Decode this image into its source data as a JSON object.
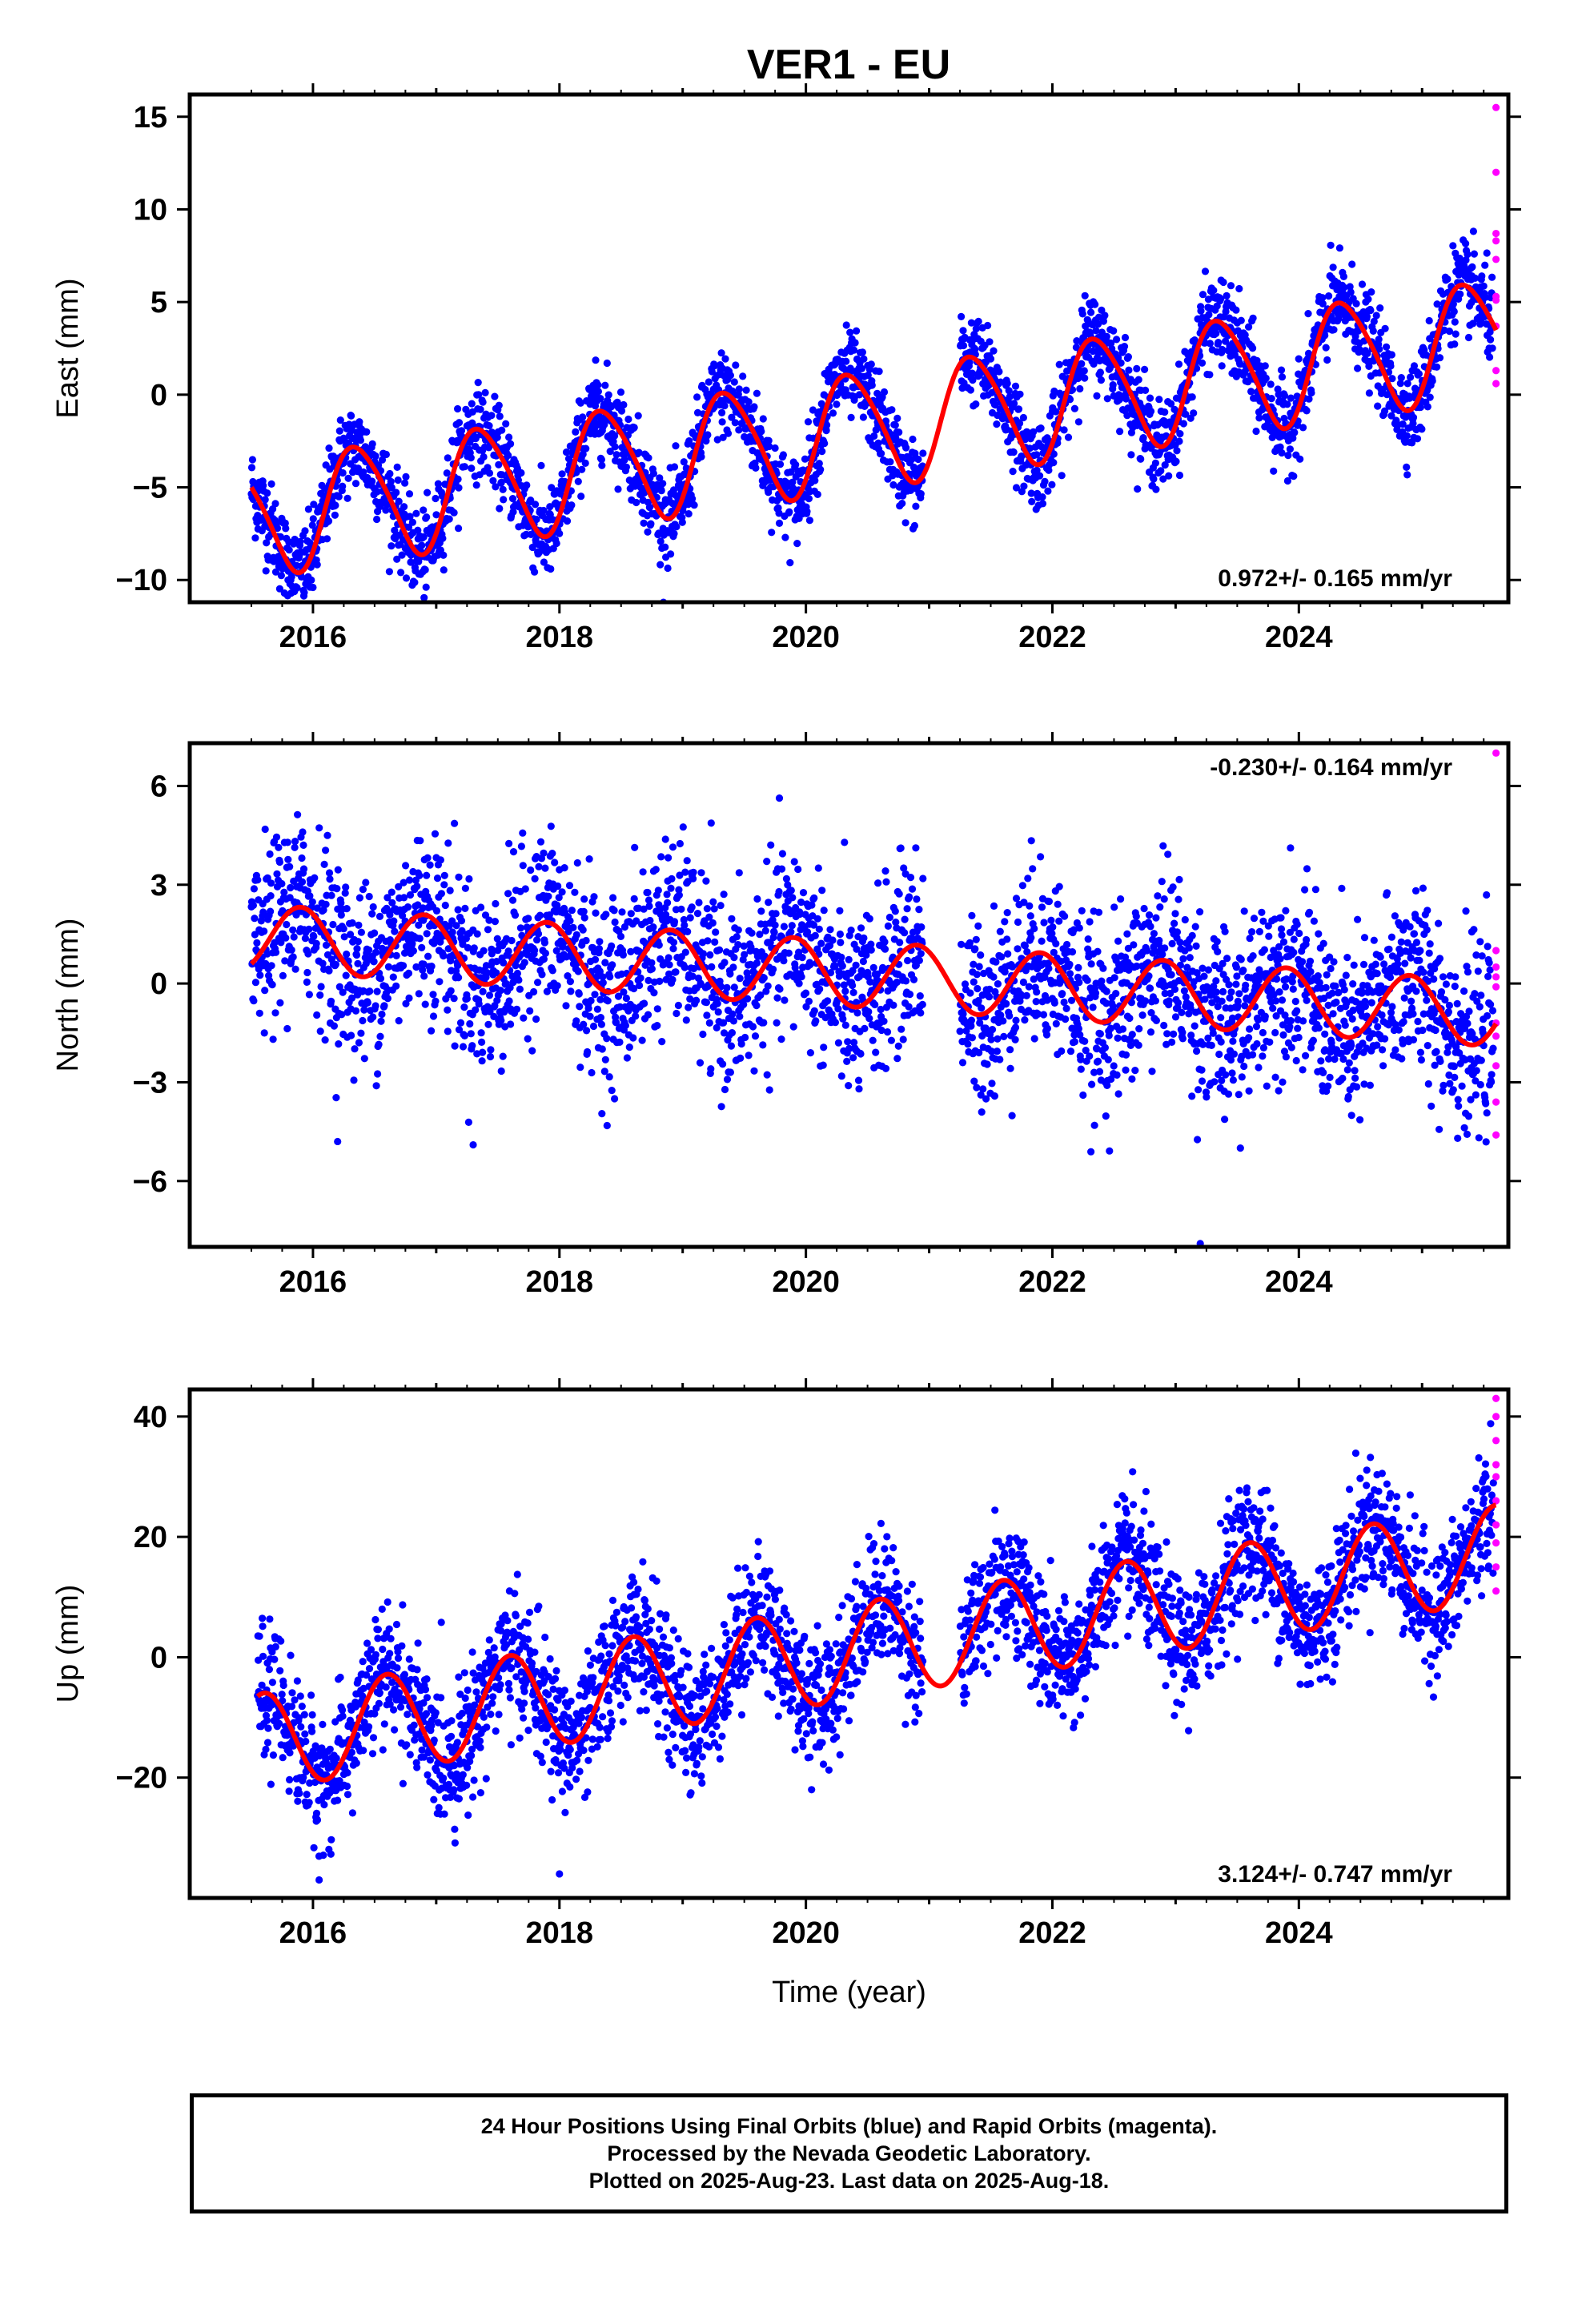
{
  "title": "VER1 - EU",
  "colors": {
    "final": "#0000ff",
    "rapid": "#ff00ff",
    "model": "#ff0000",
    "axes": "#000000"
  },
  "footer": {
    "line1": "24 Hour Positions Using Final Orbits (blue) and Rapid Orbits (magenta).",
    "line2": "Processed by the Nevada Geodetic Laboratory.",
    "line3": "Plotted on 2025-Aug-23. Last data on 2025-Aug-18."
  },
  "chart_data": [
    {
      "type": "scatter",
      "component": "east",
      "ylabel": "East (mm)",
      "xlabel": "",
      "xlim": [
        2015.0,
        2025.7
      ],
      "ylim": [
        -11.2,
        16.2
      ],
      "xticks": [
        2016,
        2018,
        2020,
        2022,
        2024
      ],
      "xtick_labels": [
        "2016",
        "2018",
        "2020",
        "2022",
        "2024"
      ],
      "yticks": [
        -10,
        -5,
        0,
        5,
        10,
        15
      ],
      "ytick_labels": [
        "−10",
        "−5",
        "0",
        "5",
        "10",
        "15"
      ],
      "rate_label": "0.972+/- 0.165 mm/yr",
      "rate_position": "bottom-right",
      "model": {
        "name": "model",
        "rate": 0.972,
        "annual_amp": 3.1,
        "annual_peak": 0.36,
        "semiannual_amp": 0.4,
        "semiannual_peak": 0.2,
        "value_at_start": -5.0
      },
      "x": [
        2015.5,
        2015.6,
        2015.75,
        2016.0,
        2016.36,
        2016.75,
        2017.36,
        2017.75,
        2018.36,
        2018.75,
        2019.36,
        2019.75,
        2020.36,
        2020.75,
        2021.36,
        2021.75,
        2022.36,
        2022.75,
        2023.36,
        2023.75,
        2024.36,
        2024.75,
        2025.36,
        2025.6
      ],
      "y": [
        -4.0,
        -6.0,
        -6.8,
        -5.5,
        -0.8,
        -5.9,
        0.1,
        -4.9,
        1.1,
        -3.9,
        2.0,
        -2.9,
        3.0,
        -1.9,
        4.0,
        -0.9,
        5.0,
        0.1,
        6.0,
        1.0,
        7.0,
        2.0,
        7.9,
        4.0
      ],
      "rapid_x": [
        2025.6,
        2025.6,
        2025.6,
        2025.6,
        2025.6,
        2025.6,
        2025.6,
        2025.6,
        2025.6,
        2025.6
      ],
      "rapid_y": [
        15.5,
        12.0,
        8.7,
        8.3,
        7.3,
        5.3,
        5.1,
        3.7,
        1.3,
        0.6
      ]
    },
    {
      "type": "scatter",
      "component": "north",
      "ylabel": "North (mm)",
      "xlabel": "",
      "xlim": [
        2015.0,
        2025.7
      ],
      "ylim": [
        -8.0,
        7.3
      ],
      "xticks": [
        2016,
        2018,
        2020,
        2022,
        2024
      ],
      "xtick_labels": [
        "2016",
        "2018",
        "2020",
        "2022",
        "2024"
      ],
      "yticks": [
        -6,
        -3,
        0,
        3,
        6
      ],
      "ytick_labels": [
        "−6",
        "−3",
        "0",
        "3",
        "6"
      ],
      "rate_label": "-0.230+/- 0.164 mm/yr",
      "rate_position": "top-right",
      "model": {
        "name": "model",
        "rate": -0.23,
        "annual_amp": 1.0,
        "annual_peak": 0.9,
        "semiannual_amp": 0.0,
        "semiannual_peak": 0.0,
        "value_at_start": 0.6
      },
      "x": [
        2015.5,
        2015.9,
        2016.4,
        2016.9,
        2017.4,
        2017.9,
        2018.4,
        2018.9,
        2019.4,
        2019.9,
        2020.4,
        2020.9,
        2021.4,
        2021.9,
        2022.4,
        2022.9,
        2023.4,
        2023.9,
        2024.4,
        2024.9,
        2025.4,
        2025.6
      ],
      "y": [
        0.7,
        2.0,
        0.1,
        1.7,
        -0.2,
        1.5,
        -0.4,
        1.3,
        -0.6,
        1.1,
        -0.8,
        0.9,
        -1.0,
        0.7,
        -1.2,
        0.4,
        -1.5,
        0.2,
        -1.7,
        -0.1,
        -1.8,
        -1.6
      ],
      "rapid_x": [
        2025.6,
        2025.6,
        2025.6,
        2025.6,
        2025.6,
        2025.6,
        2025.6,
        2025.6,
        2025.6,
        2025.6
      ],
      "rapid_y": [
        7.0,
        1.0,
        0.5,
        0.2,
        -0.1,
        -1.2,
        -1.6,
        -2.5,
        -3.6,
        -4.6
      ]
    },
    {
      "type": "scatter",
      "component": "up",
      "ylabel": "Up (mm)",
      "xlabel": "Time (year)",
      "xlim": [
        2015.0,
        2025.7
      ],
      "ylim": [
        -40.0,
        44.5
      ],
      "xticks": [
        2016,
        2018,
        2020,
        2022,
        2024
      ],
      "xtick_labels": [
        "2016",
        "2018",
        "2020",
        "2022",
        "2024"
      ],
      "yticks": [
        -20,
        0,
        20,
        40
      ],
      "ytick_labels": [
        "−20",
        "0",
        "20",
        "40"
      ],
      "rate_label": "3.124+/- 0.747 mm/yr",
      "rate_position": "bottom-right",
      "model": {
        "name": "model",
        "rate": 3.124,
        "annual_amp": 8.0,
        "annual_peak": 0.6,
        "semiannual_amp": 0.0,
        "semiannual_peak": 0.0,
        "value_at_start": -6.5
      },
      "x": [
        2015.55,
        2016.1,
        2016.6,
        2017.1,
        2017.6,
        2018.1,
        2018.6,
        2019.1,
        2019.6,
        2020.1,
        2020.6,
        2021.1,
        2021.6,
        2022.1,
        2022.6,
        2023.1,
        2023.6,
        2024.1,
        2024.6,
        2025.1,
        2025.6
      ],
      "y": [
        -7.0,
        -20.5,
        -4.0,
        -17.5,
        -0.5,
        -14.5,
        2.5,
        -11.0,
        5.5,
        -7.5,
        8.5,
        -4.5,
        11.5,
        -1.5,
        14.5,
        1.5,
        18.0,
        4.5,
        21.0,
        7.5,
        24.0
      ],
      "rapid_x": [
        2025.6,
        2025.6,
        2025.6,
        2025.6,
        2025.6,
        2025.6,
        2025.6,
        2025.6,
        2025.6,
        2025.6
      ],
      "rapid_y": [
        43.0,
        40.0,
        36.0,
        32.0,
        30.0,
        26.0,
        22.0,
        19.0,
        15.0,
        11.0
      ]
    }
  ]
}
